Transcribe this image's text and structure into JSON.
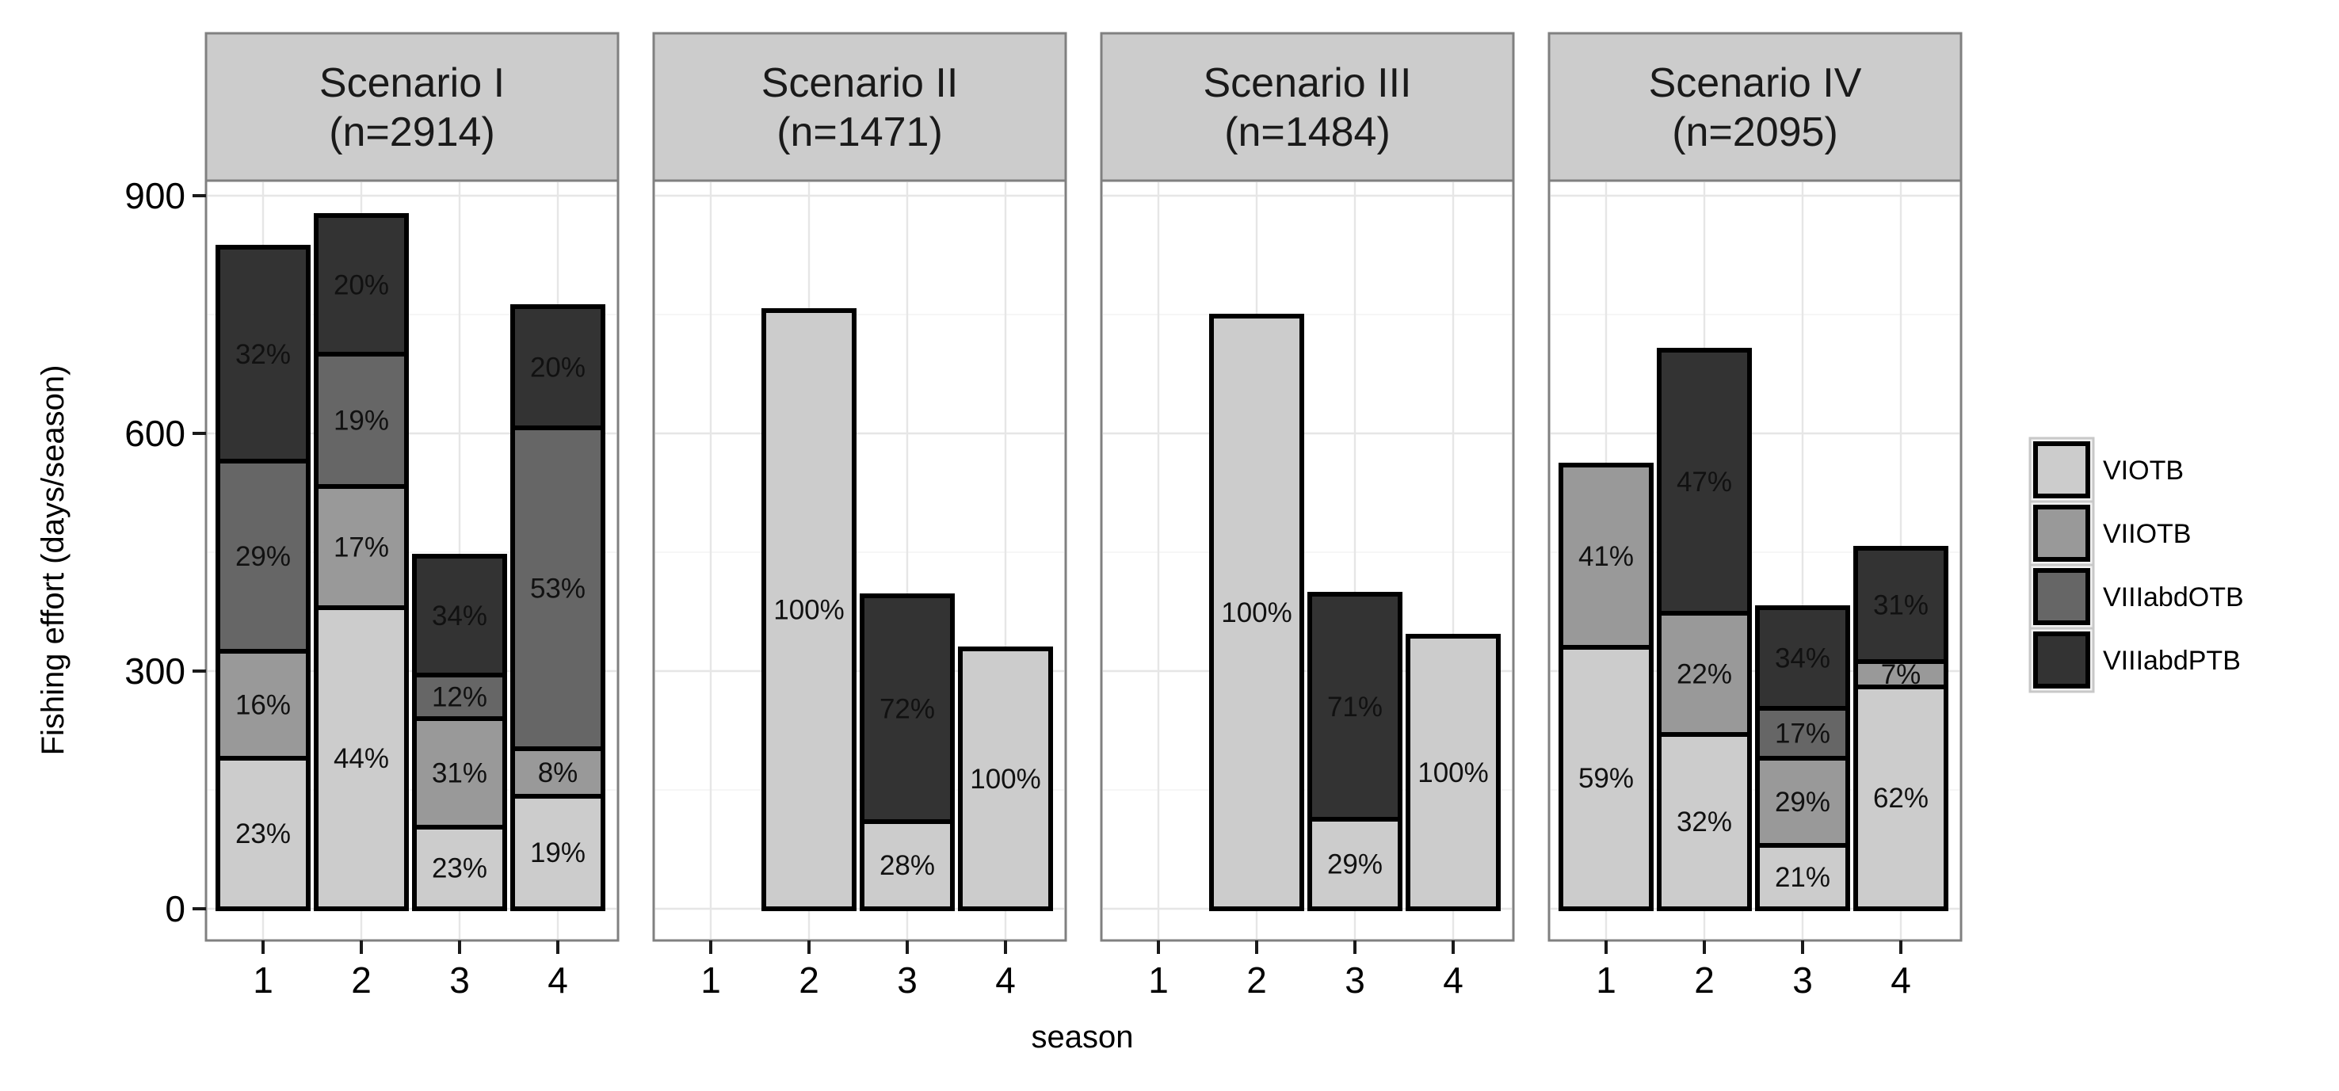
{
  "chart_data": {
    "type": "bar",
    "stacked": true,
    "xlabel": "season",
    "ylabel": "Fishing effort (days/season)",
    "ylim": [
      -35,
      1000
    ],
    "y_ticks": [
      "0",
      "300",
      "600",
      "900"
    ],
    "x_categories": [
      "1",
      "2",
      "3",
      "4"
    ],
    "legend": {
      "position": "right",
      "items": [
        {
          "name": "VIOTB",
          "color": "#cccccc"
        },
        {
          "name": "VIIOTB",
          "color": "#999999"
        },
        {
          "name": "VIIIabdOTB",
          "color": "#666666"
        },
        {
          "name": "VIIIabdPTB",
          "color": "#333333"
        }
      ]
    },
    "facets": [
      {
        "title_line1": "Scenario I",
        "title_line2": "(n=2914)",
        "bars": [
          {
            "season": "1",
            "segments": [
              {
                "series": "VIOTB",
                "value": 190,
                "label": "23%"
              },
              {
                "series": "VIIOTB",
                "value": 135,
                "label": "16%"
              },
              {
                "series": "VIIIabdOTB",
                "value": 240,
                "label": "29%"
              },
              {
                "series": "VIIIabdPTB",
                "value": 270,
                "label": "32%"
              }
            ]
          },
          {
            "season": "2",
            "segments": [
              {
                "series": "VIOTB",
                "value": 380,
                "label": "44%"
              },
              {
                "series": "VIIOTB",
                "value": 153,
                "label": "17%"
              },
              {
                "series": "VIIIabdOTB",
                "value": 167,
                "label": "19%"
              },
              {
                "series": "VIIIabdPTB",
                "value": 175,
                "label": "20%"
              }
            ]
          },
          {
            "season": "3",
            "segments": [
              {
                "series": "VIOTB",
                "value": 103,
                "label": "23%"
              },
              {
                "series": "VIIOTB",
                "value": 137,
                "label": "31%"
              },
              {
                "series": "VIIIabdOTB",
                "value": 55,
                "label": "12%"
              },
              {
                "series": "VIIIabdPTB",
                "value": 150,
                "label": "34%"
              }
            ]
          },
          {
            "season": "4",
            "segments": [
              {
                "series": "VIOTB",
                "value": 142,
                "label": "19%"
              },
              {
                "series": "VIIOTB",
                "value": 60,
                "label": "8%"
              },
              {
                "series": "VIIIabdOTB",
                "value": 405,
                "label": "53%"
              },
              {
                "series": "VIIIabdPTB",
                "value": 153,
                "label": "20%"
              }
            ]
          }
        ]
      },
      {
        "title_line1": "Scenario II",
        "title_line2": "(n=1471)",
        "bars": [
          {
            "season": "2",
            "segments": [
              {
                "series": "VIOTB",
                "value": 755,
                "label": "100%"
              }
            ]
          },
          {
            "season": "3",
            "segments": [
              {
                "series": "VIOTB",
                "value": 110,
                "label": "28%"
              },
              {
                "series": "VIIIabdPTB",
                "value": 285,
                "label": "72%"
              }
            ]
          },
          {
            "season": "4",
            "segments": [
              {
                "series": "VIOTB",
                "value": 328,
                "label": "100%"
              }
            ]
          }
        ]
      },
      {
        "title_line1": "Scenario III",
        "title_line2": "(n=1484)",
        "bars": [
          {
            "season": "2",
            "segments": [
              {
                "series": "VIOTB",
                "value": 748,
                "label": "100%"
              }
            ]
          },
          {
            "season": "3",
            "segments": [
              {
                "series": "VIOTB",
                "value": 113,
                "label": "29%"
              },
              {
                "series": "VIIIabdPTB",
                "value": 284,
                "label": "71%"
              }
            ]
          },
          {
            "season": "4",
            "segments": [
              {
                "series": "VIOTB",
                "value": 344,
                "label": "100%"
              }
            ]
          }
        ]
      },
      {
        "title_line1": "Scenario IV",
        "title_line2": "(n=2095)",
        "bars": [
          {
            "season": "1",
            "segments": [
              {
                "series": "VIOTB",
                "value": 330,
                "label": "59%"
              },
              {
                "series": "VIIOTB",
                "value": 230,
                "label": "41%"
              }
            ]
          },
          {
            "season": "2",
            "segments": [
              {
                "series": "VIOTB",
                "value": 220,
                "label": "32%"
              },
              {
                "series": "VIIOTB",
                "value": 153,
                "label": "22%"
              },
              {
                "series": "VIIIabdPTB",
                "value": 332,
                "label": "47%"
              }
            ]
          },
          {
            "season": "3",
            "segments": [
              {
                "series": "VIOTB",
                "value": 80,
                "label": "21%"
              },
              {
                "series": "VIIOTB",
                "value": 110,
                "label": "29%"
              },
              {
                "series": "VIIIabdOTB",
                "value": 63,
                "label": "17%"
              },
              {
                "series": "VIIIabdPTB",
                "value": 127,
                "label": "34%"
              }
            ]
          },
          {
            "season": "4",
            "segments": [
              {
                "series": "VIOTB",
                "value": 280,
                "label": "62%"
              },
              {
                "series": "VIIOTB",
                "value": 32,
                "label": "7%"
              },
              {
                "series": "VIIIabdPTB",
                "value": 143,
                "label": "31%"
              }
            ]
          }
        ]
      }
    ]
  }
}
